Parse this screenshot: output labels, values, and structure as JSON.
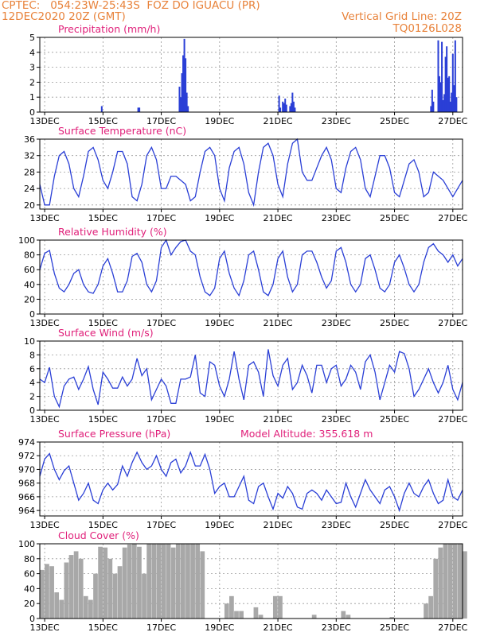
{
  "header": {
    "line1": "CPTEC:   054:23W-25:43S  FOZ DO IGUACU (PR)",
    "line2": "12DEC2020 20Z (GMT)",
    "vertical_grid": "Vertical Grid Line: 20Z",
    "code": "TQ0126L028"
  },
  "x_axis": {
    "date_labels": [
      "13DEC",
      "15DEC",
      "17DEC",
      "19DEC",
      "21DEC",
      "23DEC",
      "25DEC",
      "27DEC"
    ],
    "start_hour": 0,
    "end_hour": 348
  },
  "colors": {
    "line": "#2a3fd6",
    "cloud": "#a8a8a8",
    "title": "#e0207a",
    "header": "#e8823a",
    "grid": "#999999"
  },
  "chart_data": [
    {
      "type": "bar",
      "title": "Precipitation (mm/h)",
      "ylim": [
        0,
        5
      ],
      "yticks": [
        0,
        1,
        2,
        3,
        4,
        5
      ],
      "x_units": "hours since 12DEC2020 20Z",
      "x": [
        51,
        81,
        82,
        115,
        116,
        117,
        118,
        119,
        120,
        121,
        122,
        197,
        198,
        200,
        201,
        202,
        203,
        206,
        207,
        208,
        209,
        210,
        322,
        323,
        324,
        328,
        329,
        330,
        331,
        332,
        333,
        334,
        335,
        336,
        337,
        338,
        339,
        340,
        341,
        342,
        343
      ],
      "values": [
        0.4,
        0.3,
        0.3,
        1.7,
        1.0,
        2.6,
        3.8,
        4.9,
        3.6,
        1.3,
        0.4,
        1.1,
        0.3,
        0.7,
        0.6,
        0.9,
        0.5,
        0.4,
        0.6,
        1.3,
        0.7,
        0.3,
        0.4,
        1.5,
        0.7,
        4.8,
        2.4,
        2.0,
        4.7,
        0.8,
        1.2,
        3.7,
        4.4,
        2.3,
        2.4,
        0.7,
        1.3,
        3.9,
        1.8,
        4.8,
        1.0
      ]
    },
    {
      "type": "line",
      "title": "Surface Temperature (nC)",
      "ylim": [
        19,
        36
      ],
      "yticks": [
        20,
        24,
        28,
        32,
        36
      ],
      "x_units": "hours since 12DEC2020 20Z",
      "x": [
        0,
        4,
        8,
        12,
        16,
        20,
        24,
        28,
        32,
        36,
        40,
        44,
        48,
        52,
        56,
        60,
        64,
        68,
        72,
        76,
        80,
        84,
        88,
        92,
        96,
        100,
        104,
        108,
        112,
        116,
        120,
        124,
        128,
        132,
        136,
        140,
        144,
        148,
        152,
        156,
        160,
        164,
        168,
        172,
        176,
        180,
        184,
        188,
        192,
        196,
        200,
        204,
        208,
        212,
        216,
        220,
        224,
        228,
        232,
        236,
        240,
        244,
        248,
        252,
        256,
        260,
        264,
        268,
        272,
        276,
        280,
        284,
        288,
        292,
        296,
        300,
        304,
        308,
        312,
        316,
        320,
        324,
        328,
        332,
        336,
        340,
        344,
        348
      ],
      "values": [
        25,
        20,
        20,
        27,
        32,
        33,
        30,
        24,
        22,
        27,
        33,
        34,
        31,
        26,
        24,
        28,
        33,
        33,
        30,
        22,
        21,
        25,
        32,
        34,
        31,
        24,
        24,
        27,
        27,
        26,
        25,
        21,
        22,
        28,
        33,
        34,
        32,
        24,
        21,
        29,
        33,
        34,
        30,
        23,
        20,
        28,
        34,
        35,
        32,
        25,
        22,
        30,
        35,
        36,
        28,
        26,
        26,
        29,
        32,
        34,
        31,
        24,
        23,
        29,
        33,
        34,
        31,
        24,
        22,
        27,
        32,
        32,
        29,
        23,
        22,
        26,
        30,
        31,
        28,
        22,
        23,
        28,
        27,
        26,
        24,
        22,
        24,
        26
      ]
    },
    {
      "type": "line",
      "title": "Relative Humidity (%)",
      "ylim": [
        0,
        100
      ],
      "yticks": [
        0,
        20,
        40,
        60,
        80,
        100
      ],
      "x_units": "hours since 12DEC2020 20Z",
      "x": [
        0,
        4,
        8,
        12,
        16,
        20,
        24,
        28,
        32,
        36,
        40,
        44,
        48,
        52,
        56,
        60,
        64,
        68,
        72,
        76,
        80,
        84,
        88,
        92,
        96,
        100,
        104,
        108,
        112,
        116,
        120,
        124,
        128,
        132,
        136,
        140,
        144,
        148,
        152,
        156,
        160,
        164,
        168,
        172,
        176,
        180,
        184,
        188,
        192,
        196,
        200,
        204,
        208,
        212,
        216,
        220,
        224,
        228,
        232,
        236,
        240,
        244,
        248,
        252,
        256,
        260,
        264,
        268,
        272,
        276,
        280,
        284,
        288,
        292,
        296,
        300,
        304,
        308,
        312,
        316,
        320,
        324,
        328,
        332,
        336,
        340,
        344,
        348
      ],
      "values": [
        60,
        82,
        86,
        55,
        35,
        30,
        40,
        55,
        60,
        40,
        30,
        28,
        40,
        65,
        75,
        55,
        30,
        30,
        45,
        78,
        82,
        70,
        40,
        30,
        45,
        90,
        100,
        80,
        90,
        98,
        100,
        85,
        80,
        50,
        30,
        25,
        35,
        75,
        85,
        55,
        35,
        25,
        45,
        80,
        85,
        60,
        30,
        25,
        40,
        75,
        85,
        50,
        30,
        40,
        80,
        85,
        85,
        70,
        50,
        35,
        45,
        85,
        90,
        70,
        40,
        30,
        40,
        75,
        80,
        60,
        35,
        30,
        40,
        70,
        80,
        62,
        40,
        30,
        40,
        70,
        90,
        95,
        85,
        80,
        70,
        80,
        65,
        75
      ]
    },
    {
      "type": "line",
      "title": "Surface Wind (m/s)",
      "ylim": [
        0,
        10
      ],
      "yticks": [
        0,
        2,
        4,
        6,
        8,
        10
      ],
      "x_units": "hours since 12DEC2020 20Z",
      "x": [
        0,
        4,
        8,
        12,
        16,
        20,
        24,
        28,
        32,
        36,
        40,
        44,
        48,
        52,
        56,
        60,
        64,
        68,
        72,
        76,
        80,
        84,
        88,
        92,
        96,
        100,
        104,
        108,
        112,
        116,
        120,
        124,
        128,
        132,
        136,
        140,
        144,
        148,
        152,
        156,
        160,
        164,
        168,
        172,
        176,
        180,
        184,
        188,
        192,
        196,
        200,
        204,
        208,
        212,
        216,
        220,
        224,
        228,
        232,
        236,
        240,
        244,
        248,
        252,
        256,
        260,
        264,
        268,
        272,
        276,
        280,
        284,
        288,
        292,
        296,
        300,
        304,
        308,
        312,
        316,
        320,
        324,
        328,
        332,
        336,
        340,
        344,
        348
      ],
      "values": [
        4.5,
        4.0,
        6.2,
        2.0,
        0.5,
        3.5,
        4.5,
        4.8,
        3.0,
        4.5,
        6.3,
        3.0,
        0.8,
        5.5,
        4.5,
        3.2,
        3.2,
        4.8,
        3.5,
        4.5,
        7.5,
        5.0,
        6.0,
        1.5,
        3.0,
        4.5,
        3.5,
        1.0,
        1.0,
        4.5,
        4.5,
        4.8,
        8.0,
        2.5,
        2.0,
        7.0,
        6.5,
        3.5,
        2.0,
        4.5,
        8.5,
        4.5,
        1.5,
        6.5,
        7.0,
        5.5,
        2.0,
        8.8,
        5.0,
        3.5,
        6.5,
        7.5,
        3.0,
        4.0,
        6.5,
        5.0,
        2.5,
        6.5,
        6.5,
        4.0,
        6.0,
        6.5,
        3.5,
        4.5,
        6.5,
        5.5,
        3.0,
        7.0,
        8.0,
        5.5,
        1.5,
        4.0,
        6.5,
        5.5,
        8.5,
        8.2,
        6.0,
        2.0,
        3.0,
        4.5,
        6.0,
        4.0,
        2.5,
        4.0,
        6.5,
        3.0,
        1.5,
        4.0
      ]
    },
    {
      "type": "line",
      "title": "Surface Pressure (hPa)",
      "annotation": "Model Altitude: 355.618 m",
      "ylim": [
        963.2,
        974
      ],
      "yticks": [
        964,
        966,
        968,
        970,
        972,
        974
      ],
      "x_units": "hours since 12DEC2020 20Z",
      "x": [
        0,
        4,
        8,
        12,
        16,
        20,
        24,
        28,
        32,
        36,
        40,
        44,
        48,
        52,
        56,
        60,
        64,
        68,
        72,
        76,
        80,
        84,
        88,
        92,
        96,
        100,
        104,
        108,
        112,
        116,
        120,
        124,
        128,
        132,
        136,
        140,
        144,
        148,
        152,
        156,
        160,
        164,
        168,
        172,
        176,
        180,
        184,
        188,
        192,
        196,
        200,
        204,
        208,
        212,
        216,
        220,
        224,
        228,
        232,
        236,
        240,
        244,
        248,
        252,
        256,
        260,
        264,
        268,
        272,
        276,
        280,
        284,
        288,
        292,
        296,
        300,
        304,
        308,
        312,
        316,
        320,
        324,
        328,
        332,
        336,
        340,
        344,
        348
      ],
      "values": [
        969,
        971.5,
        972.3,
        970,
        968.5,
        969.8,
        970.5,
        968,
        965.5,
        966.5,
        968,
        965.5,
        965,
        967,
        968,
        967,
        967.8,
        970.5,
        969,
        971,
        972.5,
        971,
        970,
        970.5,
        972,
        970,
        969,
        971,
        971.5,
        969.5,
        970.5,
        972.5,
        970.5,
        970.5,
        972.2,
        970,
        966.5,
        967.5,
        968,
        966,
        966,
        967.5,
        969,
        965.5,
        965,
        967.5,
        968,
        966,
        964.2,
        966.5,
        965.8,
        967.5,
        966.5,
        964.5,
        964.2,
        966.5,
        967,
        966.5,
        965.5,
        967,
        966,
        965,
        965.2,
        968,
        966,
        964.5,
        966.5,
        968.5,
        967,
        966,
        965,
        967,
        967.5,
        966,
        964,
        966.5,
        968,
        966.5,
        966,
        967.5,
        968.5,
        966.5,
        965,
        965.5,
        968.5,
        966,
        965.5,
        967
      ]
    },
    {
      "type": "bar",
      "title": "Cloud Cover (%)",
      "ylim": [
        0,
        100
      ],
      "yticks": [
        0,
        20,
        40,
        60,
        80,
        100
      ],
      "x_units": "hours since 12DEC2020 20Z",
      "x": [
        0,
        4,
        8,
        12,
        16,
        20,
        24,
        28,
        32,
        36,
        40,
        44,
        48,
        52,
        56,
        60,
        64,
        68,
        72,
        76,
        80,
        84,
        88,
        92,
        96,
        100,
        104,
        108,
        112,
        116,
        120,
        124,
        128,
        132,
        136,
        140,
        144,
        148,
        152,
        156,
        160,
        164,
        168,
        172,
        176,
        180,
        184,
        188,
        192,
        196,
        200,
        204,
        208,
        212,
        216,
        220,
        224,
        228,
        232,
        236,
        240,
        244,
        248,
        252,
        256,
        260,
        264,
        268,
        272,
        276,
        280,
        284,
        288,
        292,
        296,
        300,
        304,
        308,
        312,
        316,
        320,
        324,
        328,
        332,
        336,
        340,
        344,
        348
      ],
      "values": [
        65,
        73,
        70,
        35,
        25,
        75,
        85,
        90,
        80,
        30,
        25,
        60,
        96,
        95,
        80,
        60,
        70,
        95,
        99,
        100,
        96,
        60,
        100,
        100,
        100,
        100,
        100,
        95,
        100,
        100,
        100,
        100,
        100,
        90,
        0,
        0,
        0,
        0,
        20,
        30,
        10,
        10,
        0,
        0,
        15,
        5,
        0,
        0,
        30,
        30,
        0,
        0,
        0,
        0,
        0,
        0,
        5,
        0,
        0,
        0,
        0,
        0,
        10,
        5,
        0,
        0,
        0,
        0,
        0,
        0,
        0,
        0,
        2,
        0,
        0,
        0,
        0,
        0,
        0,
        20,
        30,
        80,
        95,
        100,
        100,
        100,
        100,
        90
      ]
    }
  ]
}
